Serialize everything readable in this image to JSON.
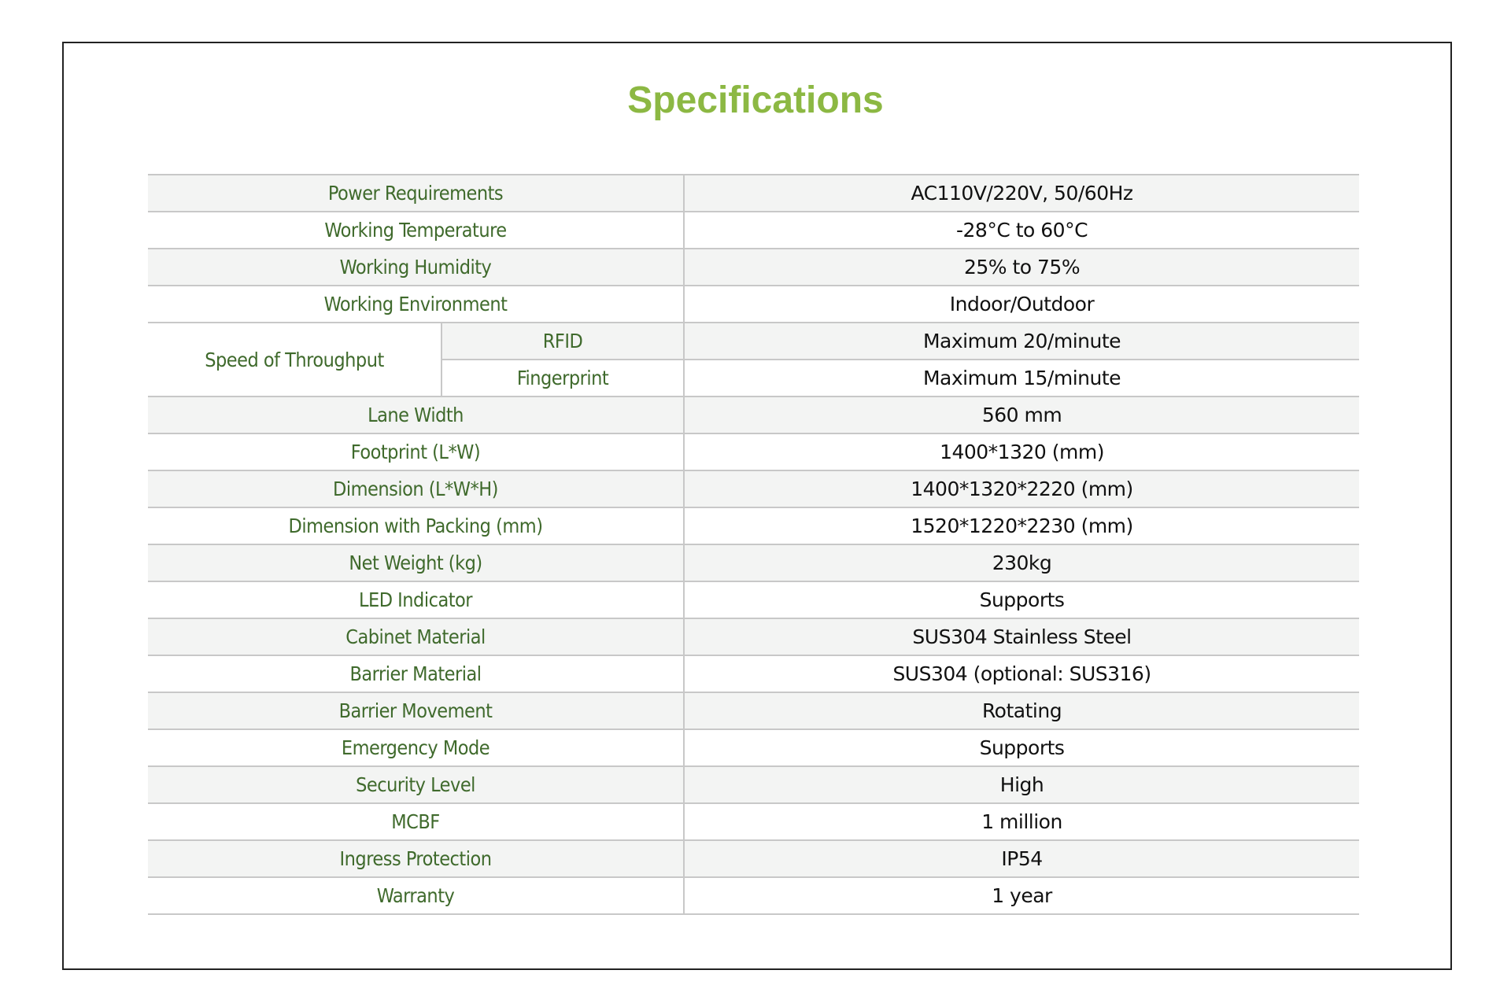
{
  "title": "Specifications",
  "colors": {
    "title": "#8cb843",
    "label": "#3f6a2c",
    "value": "#111111",
    "row_shade": "#f3f4f3"
  },
  "rows_before": [
    {
      "label": "Power Requirements",
      "value": "AC110V/220V, 50/60Hz"
    },
    {
      "label": "Working Temperature",
      "value": "-28°C to 60°C"
    },
    {
      "label": "Working Humidity",
      "value": "25% to 75%"
    },
    {
      "label": "Working Environment",
      "value": "Indoor/Outdoor"
    }
  ],
  "throughput": {
    "label": "Speed of Throughput",
    "items": [
      {
        "label": "RFID",
        "value": "Maximum 20/minute"
      },
      {
        "label": "Fingerprint",
        "value": "Maximum 15/minute"
      }
    ]
  },
  "rows_after": [
    {
      "label": "Lane Width",
      "value": "560 mm"
    },
    {
      "label": "Footprint (L*W)",
      "value": "1400*1320 (mm)"
    },
    {
      "label": "Dimension (L*W*H)",
      "value": "1400*1320*2220 (mm)"
    },
    {
      "label": "Dimension with Packing (mm)",
      "value": "1520*1220*2230 (mm)"
    },
    {
      "label": "Net Weight (kg)",
      "value": "230kg"
    },
    {
      "label": "LED Indicator",
      "value": "Supports"
    },
    {
      "label": "Cabinet Material",
      "value": "SUS304 Stainless Steel"
    },
    {
      "label": "Barrier Material",
      "value": "SUS304 (optional: SUS316)"
    },
    {
      "label": "Barrier Movement",
      "value": "Rotating"
    },
    {
      "label": "Emergency Mode",
      "value": "Supports"
    },
    {
      "label": "Security Level",
      "value": "High"
    },
    {
      "label": "MCBF",
      "value": "1 million"
    },
    {
      "label": "Ingress Protection",
      "value": "IP54"
    },
    {
      "label": "Warranty",
      "value": "1 year"
    }
  ]
}
